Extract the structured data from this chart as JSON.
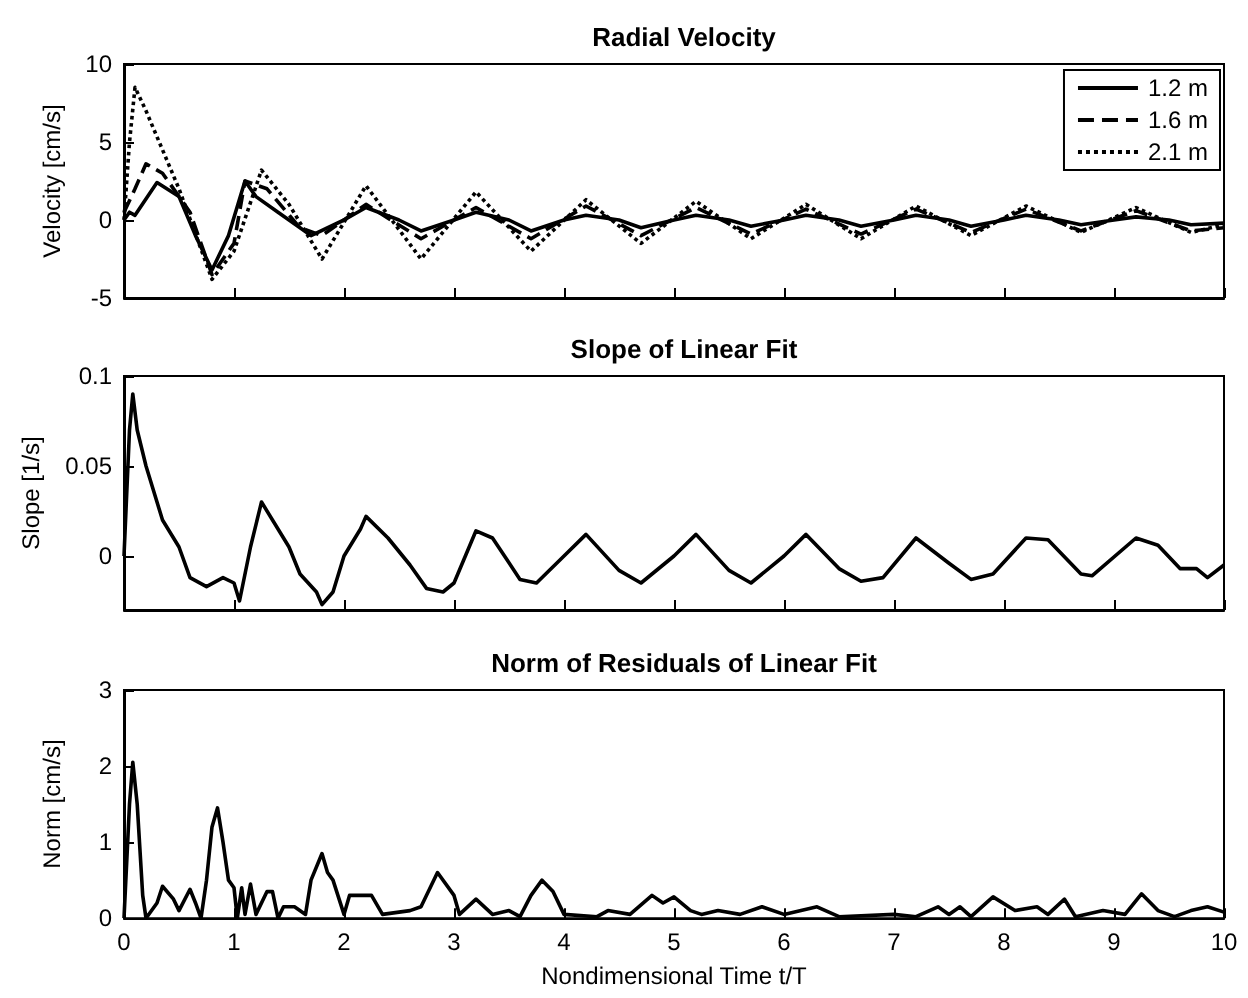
{
  "chart_data": [
    {
      "type": "line",
      "title": "Radial Velocity",
      "ylabel": "Velocity [cm/s]",
      "xlim": [
        0,
        10
      ],
      "xticks": [
        0,
        1,
        2,
        3,
        4,
        5,
        6,
        7,
        8,
        9,
        10
      ],
      "ylim": [
        -5,
        10
      ],
      "yticks": [
        -5,
        0,
        5,
        10
      ],
      "tick_labels": "y",
      "legend": "top right",
      "grid": false,
      "marker": "none",
      "series": [
        {
          "name": "1.2 m",
          "color": "#000000",
          "line_style": "solid",
          "x": [
            0,
            0.05,
            0.1,
            0.3,
            0.5,
            0.65,
            0.8,
            0.95,
            1.1,
            1.2,
            1.4,
            1.6,
            1.7,
            2.0,
            2.2,
            2.5,
            2.7,
            3.0,
            3.2,
            3.5,
            3.7,
            4.0,
            4.2,
            4.5,
            4.7,
            5.0,
            5.2,
            5.5,
            5.7,
            6.0,
            6.2,
            6.5,
            6.7,
            7.0,
            7.2,
            7.5,
            7.7,
            8.0,
            8.2,
            8.5,
            8.7,
            9.0,
            9.2,
            9.5,
            9.7,
            10
          ],
          "values": [
            0,
            0.5,
            0.3,
            2.4,
            1.5,
            -1,
            -3.2,
            -1,
            2.5,
            1.5,
            0.5,
            -0.5,
            -1,
            0,
            0.8,
            0,
            -0.7,
            0,
            0.5,
            0,
            -0.7,
            0,
            0.3,
            0,
            -0.5,
            0,
            0.3,
            0,
            -0.4,
            0,
            0.3,
            0,
            -0.4,
            0,
            0.3,
            0,
            -0.4,
            0,
            0.3,
            0,
            -0.3,
            0,
            0.2,
            0,
            -0.3,
            -0.2
          ]
        },
        {
          "name": "1.6 m",
          "color": "#000000",
          "line_style": "dashed",
          "x": [
            0,
            0.1,
            0.2,
            0.35,
            0.6,
            0.8,
            1.0,
            1.1,
            1.3,
            1.6,
            1.8,
            2.2,
            2.7,
            3.2,
            3.7,
            4.2,
            4.7,
            5.2,
            5.7,
            6.2,
            6.7,
            7.2,
            7.7,
            8.2,
            8.7,
            9.2,
            9.7,
            10
          ],
          "values": [
            0.5,
            2,
            3.6,
            3,
            0.5,
            -3.5,
            -1.5,
            2.5,
            2,
            -0.5,
            -1,
            1,
            -1.2,
            0.8,
            -1.2,
            0.9,
            -1,
            0.8,
            -0.9,
            0.7,
            -0.9,
            0.7,
            -0.8,
            0.7,
            -0.7,
            0.6,
            -0.7,
            -0.5
          ]
        },
        {
          "name": "2.1 m",
          "color": "#000000",
          "line_style": "dotted",
          "x": [
            0,
            0.05,
            0.1,
            0.2,
            0.5,
            0.8,
            1.0,
            1.25,
            1.5,
            1.8,
            2.2,
            2.7,
            3.2,
            3.7,
            4.2,
            4.7,
            5.2,
            5.7,
            6.2,
            6.7,
            7.2,
            7.7,
            8.2,
            8.7,
            9.2,
            9.7,
            10
          ],
          "values": [
            0,
            5,
            8.5,
            7,
            2,
            -3.8,
            -2,
            3.2,
            1,
            -2.5,
            2.2,
            -2.5,
            1.8,
            -2,
            1.3,
            -1.5,
            1.2,
            -1.2,
            1,
            -1.2,
            0.9,
            -1,
            0.9,
            -0.8,
            0.8,
            -0.8,
            -0.3
          ]
        }
      ]
    },
    {
      "type": "line",
      "title": "Slope of Linear Fit",
      "ylabel": "Slope [1/s]",
      "xlim": [
        0,
        10
      ],
      "xticks": [
        0,
        1,
        2,
        3,
        4,
        5,
        6,
        7,
        8,
        9,
        10
      ],
      "ylim": [
        -0.03,
        0.1
      ],
      "yticks": [
        0,
        0.05,
        0.1
      ],
      "tick_labels": "y",
      "grid": false,
      "marker": "none",
      "series": [
        {
          "color": "#000000",
          "line_style": "solid",
          "x": [
            0,
            0.05,
            0.08,
            0.12,
            0.2,
            0.35,
            0.5,
            0.6,
            0.75,
            0.9,
            1.0,
            1.05,
            1.15,
            1.25,
            1.4,
            1.5,
            1.6,
            1.75,
            1.8,
            1.9,
            2.0,
            2.15,
            2.2,
            2.4,
            2.6,
            2.75,
            2.9,
            3.0,
            3.2,
            3.35,
            3.6,
            3.75,
            4.0,
            4.2,
            4.5,
            4.7,
            5.0,
            5.2,
            5.5,
            5.7,
            6.0,
            6.2,
            6.5,
            6.7,
            6.9,
            7.2,
            7.5,
            7.7,
            7.9,
            8.2,
            8.4,
            8.7,
            8.8,
            9.2,
            9.4,
            9.6,
            9.75,
            9.85,
            10
          ],
          "values": [
            0,
            0.07,
            0.09,
            0.07,
            0.05,
            0.02,
            0.005,
            -0.012,
            -0.017,
            -0.012,
            -0.015,
            -0.025,
            0.005,
            0.03,
            0.015,
            0.005,
            -0.01,
            -0.02,
            -0.027,
            -0.02,
            0,
            0.015,
            0.022,
            0.01,
            -0.005,
            -0.018,
            -0.02,
            -0.015,
            0.014,
            0.01,
            -0.013,
            -0.015,
            0,
            0.012,
            -0.008,
            -0.015,
            0,
            0.012,
            -0.008,
            -0.015,
            0,
            0.012,
            -0.007,
            -0.014,
            -0.012,
            0.01,
            -0.004,
            -0.013,
            -0.01,
            0.01,
            0.009,
            -0.01,
            -0.011,
            0.01,
            0.006,
            -0.007,
            -0.007,
            -0.012,
            -0.005
          ]
        }
      ]
    },
    {
      "type": "line",
      "title": "Norm of Residuals of Linear Fit",
      "ylabel": "Norm [cm/s]",
      "xlabel": "Nondimensional Time t/T",
      "xlim": [
        0,
        10
      ],
      "xticks": [
        0,
        1,
        2,
        3,
        4,
        5,
        6,
        7,
        8,
        9,
        10
      ],
      "ylim": [
        0,
        3
      ],
      "yticks": [
        0,
        1,
        2,
        3
      ],
      "grid": false,
      "marker": "none",
      "series": [
        {
          "color": "#000000",
          "line_style": "solid",
          "x": [
            0,
            0.05,
            0.08,
            0.12,
            0.17,
            0.2,
            0.3,
            0.35,
            0.45,
            0.5,
            0.6,
            0.65,
            0.7,
            0.75,
            0.8,
            0.85,
            0.9,
            0.95,
            1.0,
            1.03,
            1.07,
            1.1,
            1.15,
            1.2,
            1.3,
            1.35,
            1.4,
            1.45,
            1.55,
            1.65,
            1.7,
            1.8,
            1.85,
            1.9,
            2.0,
            2.05,
            2.2,
            2.25,
            2.35,
            2.6,
            2.7,
            2.85,
            3.0,
            3.05,
            3.2,
            3.35,
            3.5,
            3.6,
            3.7,
            3.8,
            3.9,
            4.0,
            4.3,
            4.4,
            4.6,
            4.8,
            4.9,
            5.0,
            5.15,
            5.25,
            5.4,
            5.6,
            5.8,
            6.0,
            6.3,
            6.5,
            7.0,
            7.2,
            7.4,
            7.5,
            7.6,
            7.7,
            7.9,
            8.1,
            8.3,
            8.4,
            8.55,
            8.65,
            8.9,
            9.1,
            9.25,
            9.4,
            9.55,
            9.7,
            9.85,
            10
          ],
          "values": [
            0,
            1.5,
            2.05,
            1.5,
            0.3,
            0,
            0.2,
            0.42,
            0.25,
            0.1,
            0.38,
            0.2,
            0,
            0.5,
            1.2,
            1.45,
            1.0,
            0.5,
            0.4,
            0,
            0.4,
            0.05,
            0.45,
            0.05,
            0.35,
            0.35,
            0,
            0.15,
            0.15,
            0.05,
            0.5,
            0.85,
            0.6,
            0.5,
            0.05,
            0.3,
            0.3,
            0.3,
            0.05,
            0.1,
            0.15,
            0.6,
            0.3,
            0.05,
            0.25,
            0.05,
            0.1,
            0.02,
            0.3,
            0.5,
            0.35,
            0.05,
            0.02,
            0.1,
            0.05,
            0.3,
            0.2,
            0.28,
            0.1,
            0.05,
            0.1,
            0.05,
            0.15,
            0.05,
            0.15,
            0.02,
            0.05,
            0.02,
            0.15,
            0.05,
            0.15,
            0.02,
            0.28,
            0.1,
            0.15,
            0.05,
            0.25,
            0.02,
            0.1,
            0.05,
            0.32,
            0.1,
            0.02,
            0.1,
            0.15,
            0.08
          ]
        }
      ]
    }
  ]
}
